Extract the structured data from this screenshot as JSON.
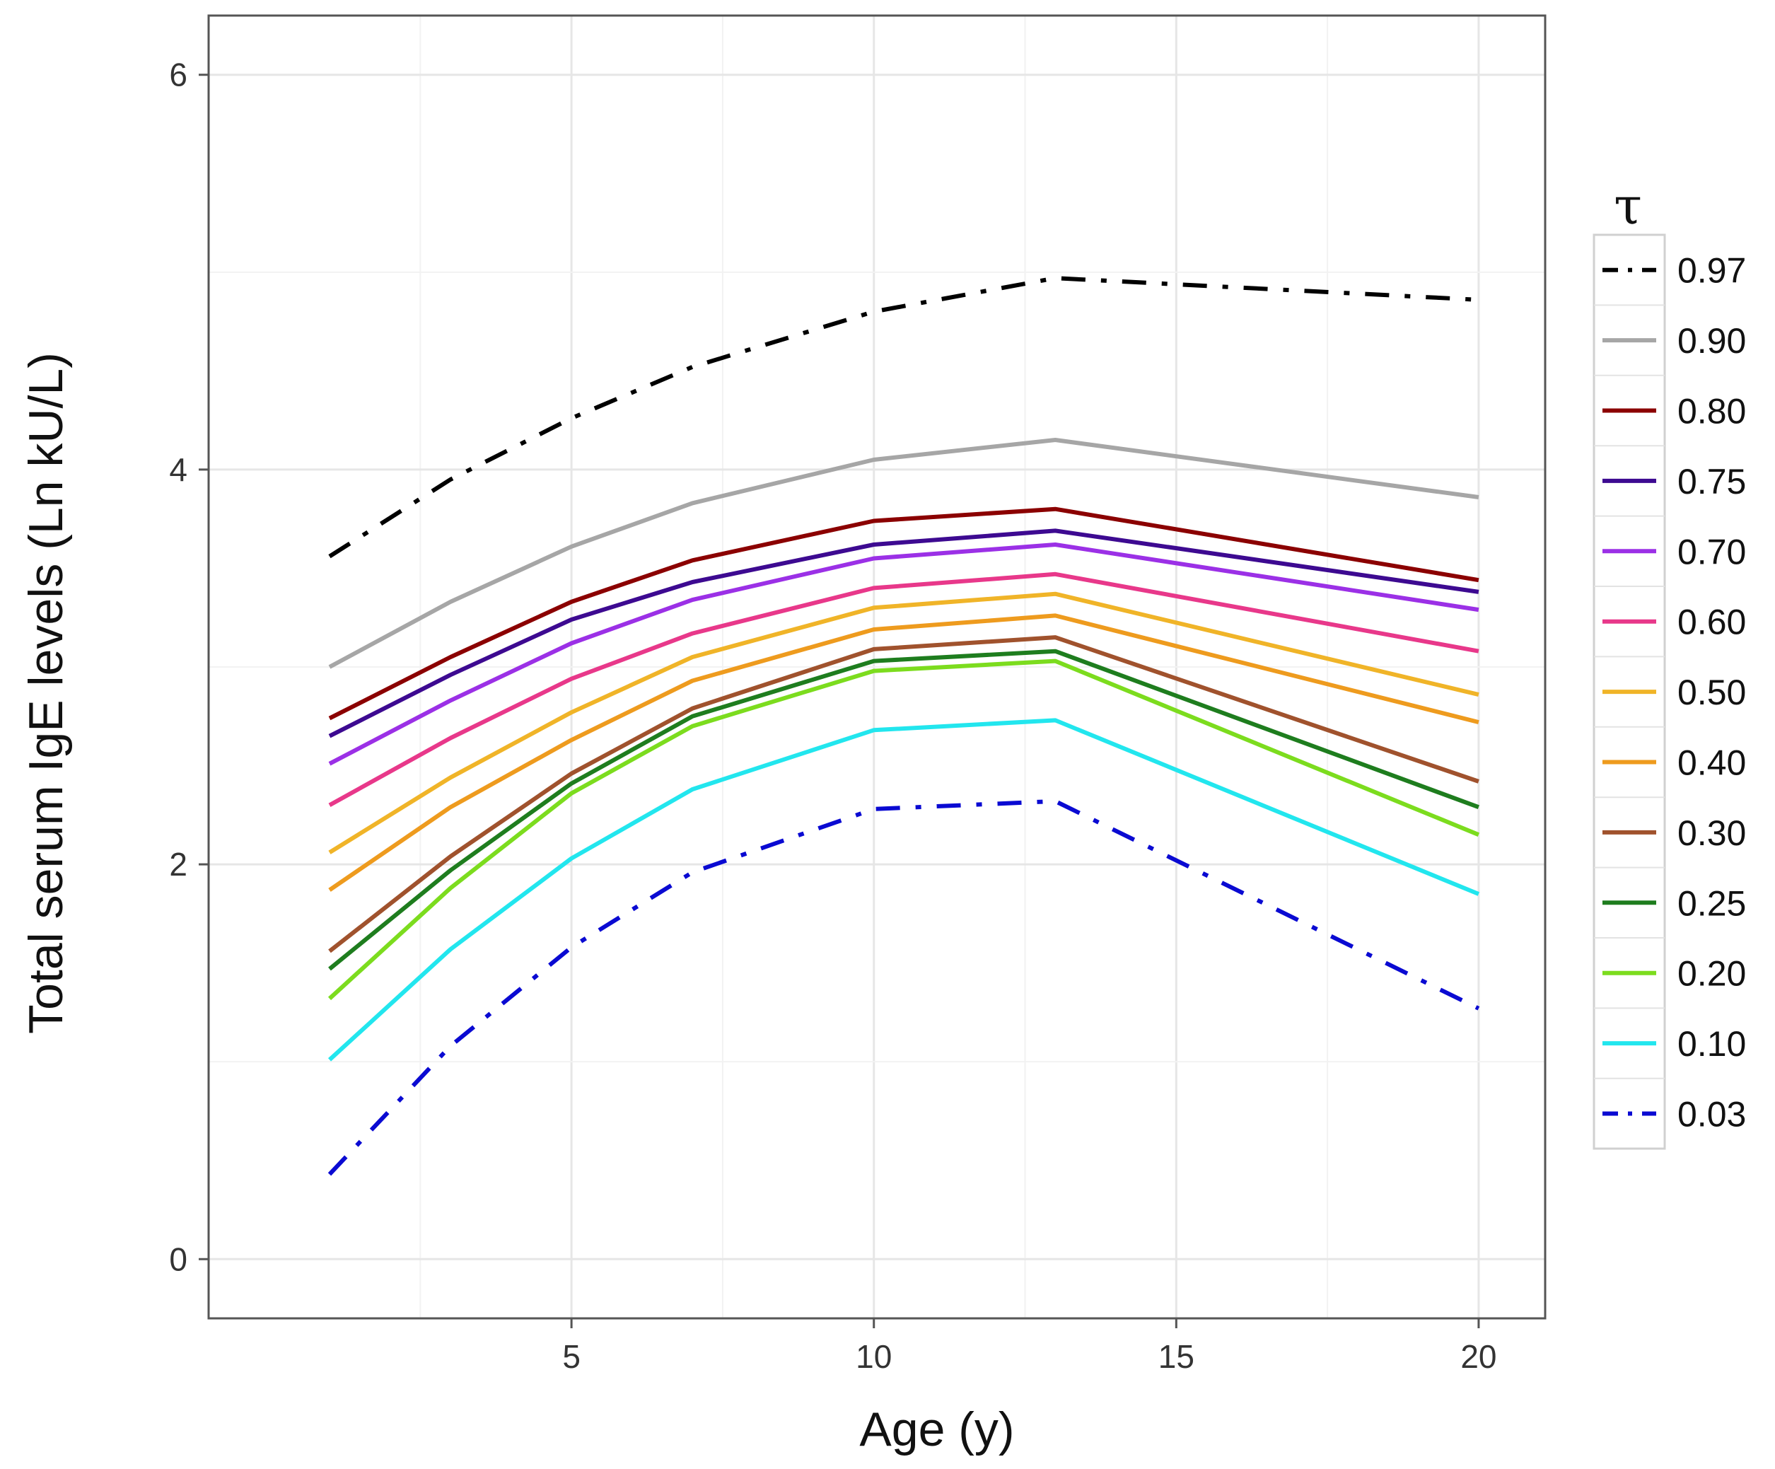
{
  "chart_data": {
    "type": "line",
    "title": "",
    "xlabel": "Age (y)",
    "ylabel": "Total serum IgE levels (Ln kU/L)",
    "xlim": [
      -1,
      21.1
    ],
    "ylim": [
      -0.3,
      6.3
    ],
    "xticks": [
      5,
      10,
      15,
      20
    ],
    "xtick_labels": [
      "5",
      "10",
      "15",
      "20"
    ],
    "yticks": [
      0,
      2,
      4,
      6
    ],
    "ytick_labels": [
      "0",
      "2",
      "4",
      "6"
    ],
    "grid": true,
    "legend_title": "τ",
    "legend_position": "right",
    "x": [
      1,
      3,
      5,
      7,
      10,
      13,
      20
    ],
    "series": [
      {
        "name": "0.97",
        "color": "#000000",
        "dash": "dashdot",
        "values": [
          3.56,
          3.95,
          4.26,
          4.52,
          4.8,
          4.97,
          4.86
        ]
      },
      {
        "name": "0.90",
        "color": "#a6a6a6",
        "dash": "solid",
        "values": [
          3.0,
          3.33,
          3.61,
          3.83,
          4.05,
          4.15,
          3.86
        ]
      },
      {
        "name": "0.80",
        "color": "#8b0000",
        "dash": "solid",
        "values": [
          2.74,
          3.05,
          3.33,
          3.54,
          3.74,
          3.8,
          3.44
        ]
      },
      {
        "name": "0.75",
        "color": "#3d0a91",
        "dash": "solid",
        "values": [
          2.65,
          2.96,
          3.24,
          3.43,
          3.62,
          3.69,
          3.38
        ]
      },
      {
        "name": "0.70",
        "color": "#9b30e6",
        "dash": "solid",
        "values": [
          2.51,
          2.83,
          3.12,
          3.34,
          3.55,
          3.62,
          3.29
        ]
      },
      {
        "name": "0.60",
        "color": "#e8388a",
        "dash": "solid",
        "values": [
          2.3,
          2.64,
          2.94,
          3.17,
          3.4,
          3.47,
          3.08
        ]
      },
      {
        "name": "0.50",
        "color": "#f0b428",
        "dash": "solid",
        "values": [
          2.06,
          2.44,
          2.77,
          3.05,
          3.3,
          3.37,
          2.86
        ]
      },
      {
        "name": "0.40",
        "color": "#ee9b1e",
        "dash": "solid",
        "values": [
          1.87,
          2.29,
          2.63,
          2.93,
          3.19,
          3.26,
          2.72
        ]
      },
      {
        "name": "0.30",
        "color": "#a0522d",
        "dash": "solid",
        "values": [
          1.56,
          2.04,
          2.46,
          2.79,
          3.09,
          3.15,
          2.42
        ]
      },
      {
        "name": "0.25",
        "color": "#1e7d1e",
        "dash": "solid",
        "values": [
          1.47,
          1.97,
          2.41,
          2.75,
          3.03,
          3.08,
          2.29
        ]
      },
      {
        "name": "0.20",
        "color": "#7cdc1e",
        "dash": "solid",
        "values": [
          1.32,
          1.88,
          2.36,
          2.7,
          2.98,
          3.03,
          2.15
        ]
      },
      {
        "name": "0.10",
        "color": "#22e6ee",
        "dash": "solid",
        "values": [
          1.01,
          1.57,
          2.03,
          2.38,
          2.68,
          2.73,
          1.85
        ]
      },
      {
        "name": "0.03",
        "color": "#0a0ad2",
        "dash": "dashdot",
        "values": [
          0.43,
          1.08,
          1.58,
          1.96,
          2.28,
          2.32,
          1.27
        ]
      }
    ]
  }
}
